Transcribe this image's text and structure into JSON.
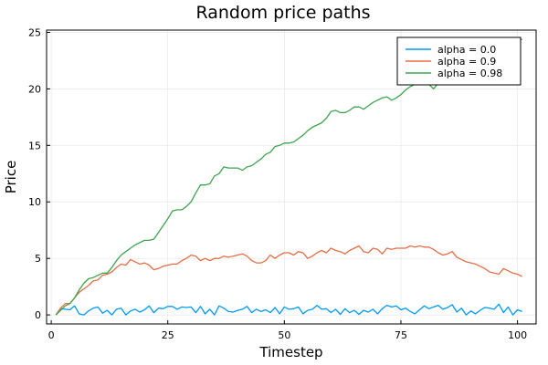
{
  "chart_data": {
    "type": "line",
    "title": "Random price paths",
    "xlabel": "Timestep",
    "ylabel": "Price",
    "xlim": [
      -1,
      104
    ],
    "ylim": [
      -0.8,
      25.2
    ],
    "xticks": [
      0,
      25,
      50,
      75,
      100
    ],
    "yticks": [
      0,
      5,
      10,
      15,
      20,
      25
    ],
    "grid": true,
    "legend_position": "top-right",
    "series": [
      {
        "name": "alpha = 0.0",
        "color": "#009AFA",
        "x": [
          1,
          2,
          3,
          4,
          5,
          6,
          7,
          8,
          9,
          10,
          11,
          12,
          13,
          14,
          15,
          16,
          17,
          18,
          19,
          20,
          21,
          22,
          23,
          24,
          25,
          26,
          27,
          28,
          29,
          30,
          31,
          32,
          33,
          34,
          35,
          36,
          37,
          38,
          39,
          40,
          41,
          42,
          43,
          44,
          45,
          46,
          47,
          48,
          49,
          50,
          51,
          52,
          53,
          54,
          55,
          56,
          57,
          58,
          59,
          60,
          61,
          62,
          63,
          64,
          65,
          66,
          67,
          68,
          69,
          70,
          71,
          72,
          73,
          74,
          75,
          76,
          77,
          78,
          79,
          80,
          81,
          82,
          83,
          84,
          85,
          86,
          87,
          88,
          89,
          90,
          91,
          92,
          93,
          94,
          95,
          96,
          97,
          98,
          99,
          100,
          101
        ],
        "y": [
          0.0,
          0.55,
          0.5,
          0.45,
          0.8,
          0.1,
          0.0,
          0.35,
          0.6,
          0.7,
          0.15,
          0.4,
          0.0,
          0.5,
          0.6,
          0.0,
          0.35,
          0.5,
          0.25,
          0.45,
          0.8,
          0.2,
          0.6,
          0.55,
          0.75,
          0.75,
          0.5,
          0.7,
          0.65,
          0.7,
          0.2,
          0.75,
          0.1,
          0.5,
          0.0,
          0.8,
          0.6,
          0.3,
          0.25,
          0.4,
          0.5,
          0.75,
          0.2,
          0.5,
          0.3,
          0.45,
          0.2,
          0.65,
          0.1,
          0.7,
          0.5,
          0.55,
          0.7,
          0.1,
          0.4,
          0.5,
          0.85,
          0.5,
          0.55,
          0.2,
          0.5,
          0.05,
          0.55,
          0.2,
          0.4,
          0.05,
          0.4,
          0.25,
          0.5,
          0.1,
          0.55,
          0.85,
          0.7,
          0.8,
          0.45,
          0.6,
          0.3,
          0.1,
          0.45,
          0.8,
          0.55,
          0.7,
          0.85,
          0.5,
          0.65,
          0.9,
          0.25,
          0.6,
          0.0,
          0.35,
          0.1,
          0.4,
          0.65,
          0.6,
          0.5,
          0.95,
          0.2,
          0.7,
          0.0,
          0.45,
          0.3
        ]
      },
      {
        "name": "alpha = 0.9",
        "color": "#E36F47",
        "x": [
          1,
          2,
          3,
          4,
          5,
          6,
          7,
          8,
          9,
          10,
          11,
          12,
          13,
          14,
          15,
          16,
          17,
          18,
          19,
          20,
          21,
          22,
          23,
          24,
          25,
          26,
          27,
          28,
          29,
          30,
          31,
          32,
          33,
          34,
          35,
          36,
          37,
          38,
          39,
          40,
          41,
          42,
          43,
          44,
          45,
          46,
          47,
          48,
          49,
          50,
          51,
          52,
          53,
          54,
          55,
          56,
          57,
          58,
          59,
          60,
          61,
          62,
          63,
          64,
          65,
          66,
          67,
          68,
          69,
          70,
          71,
          72,
          73,
          74,
          75,
          76,
          77,
          78,
          79,
          80,
          81,
          82,
          83,
          84,
          85,
          86,
          87,
          88,
          89,
          90,
          91,
          92,
          93,
          94,
          95,
          96,
          97,
          98,
          99,
          100,
          101
        ],
        "y": [
          0.0,
          0.6,
          1.0,
          1.0,
          1.5,
          2.0,
          2.3,
          2.6,
          3.0,
          3.1,
          3.5,
          3.6,
          3.8,
          4.2,
          4.5,
          4.4,
          4.9,
          4.7,
          4.5,
          4.6,
          4.4,
          4.0,
          4.1,
          4.3,
          4.4,
          4.5,
          4.5,
          4.8,
          5.0,
          5.3,
          5.2,
          4.8,
          5.0,
          4.8,
          5.0,
          5.0,
          5.2,
          5.1,
          5.2,
          5.3,
          5.4,
          5.2,
          4.8,
          4.6,
          4.6,
          4.8,
          5.3,
          5.0,
          5.3,
          5.5,
          5.5,
          5.3,
          5.6,
          5.5,
          5.0,
          5.2,
          5.5,
          5.7,
          5.5,
          5.9,
          5.7,
          5.6,
          5.4,
          5.7,
          5.9,
          6.1,
          5.6,
          5.5,
          5.9,
          5.8,
          5.4,
          5.9,
          5.8,
          5.9,
          5.9,
          5.9,
          6.1,
          6.0,
          6.1,
          6.0,
          6.0,
          5.8,
          5.5,
          5.3,
          5.4,
          5.6,
          5.1,
          4.9,
          4.7,
          4.6,
          4.5,
          4.3,
          4.1,
          3.8,
          3.7,
          3.6,
          4.1,
          3.9,
          3.7,
          3.6,
          3.4
        ]
      },
      {
        "name": "alpha = 0.98",
        "color": "#3EA44E",
        "x": [
          1,
          2,
          3,
          4,
          5,
          6,
          7,
          8,
          9,
          10,
          11,
          12,
          13,
          14,
          15,
          16,
          17,
          18,
          19,
          20,
          21,
          22,
          23,
          24,
          25,
          26,
          27,
          28,
          29,
          30,
          31,
          32,
          33,
          34,
          35,
          36,
          37,
          38,
          39,
          40,
          41,
          42,
          43,
          44,
          45,
          46,
          47,
          48,
          49,
          50,
          51,
          52,
          53,
          54,
          55,
          56,
          57,
          58,
          59,
          60,
          61,
          62,
          63,
          64,
          65,
          66,
          67,
          68,
          69,
          70,
          71,
          72,
          73,
          74,
          75,
          76,
          77,
          78,
          79,
          80,
          81,
          82,
          83,
          84,
          85,
          86,
          87,
          88,
          89,
          90,
          91,
          92,
          93,
          94,
          95,
          96,
          97,
          98,
          99,
          100,
          101
        ],
        "y": [
          0.0,
          0.4,
          0.8,
          1.0,
          1.5,
          2.2,
          2.8,
          3.2,
          3.3,
          3.5,
          3.7,
          3.7,
          4.2,
          4.8,
          5.3,
          5.6,
          5.9,
          6.2,
          6.4,
          6.6,
          6.6,
          6.7,
          7.3,
          7.9,
          8.5,
          9.2,
          9.3,
          9.3,
          9.6,
          10.0,
          10.8,
          11.5,
          11.5,
          11.6,
          12.3,
          12.5,
          13.1,
          13.0,
          13.0,
          13.0,
          12.8,
          13.1,
          13.2,
          13.5,
          13.8,
          14.2,
          14.4,
          14.9,
          15.0,
          15.2,
          15.2,
          15.3,
          15.6,
          15.9,
          16.3,
          16.6,
          16.8,
          17.0,
          17.4,
          18.0,
          18.1,
          17.9,
          17.9,
          18.1,
          18.4,
          18.4,
          18.2,
          18.5,
          18.8,
          19.0,
          19.2,
          19.3,
          19.0,
          19.2,
          19.5,
          19.9,
          20.2,
          20.4,
          20.7,
          20.4,
          20.4,
          20.0,
          20.5,
          20.8,
          21.2,
          21.4,
          21.8,
          22.0,
          22.1,
          22.3,
          22.6,
          22.8,
          22.9,
          23.1,
          23.4,
          23.6,
          23.7,
          23.9,
          24.0,
          24.2,
          24.4
        ]
      }
    ]
  }
}
